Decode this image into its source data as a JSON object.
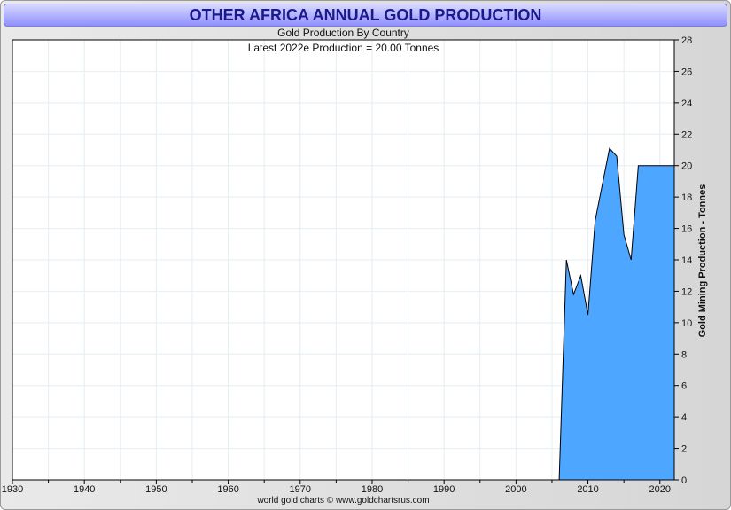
{
  "chart_data": {
    "type": "area",
    "title": "OTHER AFRICA ANNUAL GOLD PRODUCTION",
    "subtitle": "Gold Production By Country",
    "annotation": "Latest 2022e  Production = 20.00 Tonnes",
    "ylabel": "Gold Mining Production - Tonnes",
    "xlabel": "",
    "footer": "world gold charts © www.goldchartsrus.com",
    "xlim": [
      1930,
      2022
    ],
    "ylim": [
      0,
      28
    ],
    "x_ticks": [
      1930,
      1940,
      1950,
      1960,
      1970,
      1980,
      1990,
      2000,
      2010,
      2020
    ],
    "y_ticks": [
      0,
      2,
      4,
      6,
      8,
      10,
      12,
      14,
      16,
      18,
      20,
      22,
      24,
      26,
      28
    ],
    "grid": true,
    "fill_color": "#4da6ff",
    "line_color": "#000000",
    "series": [
      {
        "name": "Other Africa",
        "x": [
          2006,
          2007,
          2008,
          2009,
          2010,
          2011,
          2012,
          2013,
          2014,
          2015,
          2016,
          2017,
          2018,
          2019,
          2020,
          2021,
          2022
        ],
        "values": [
          0,
          14.0,
          11.8,
          13.0,
          10.5,
          16.5,
          18.8,
          21.1,
          20.6,
          15.6,
          14.0,
          20.0,
          20.0,
          20.0,
          20.0,
          20.0,
          20.0
        ]
      }
    ]
  }
}
